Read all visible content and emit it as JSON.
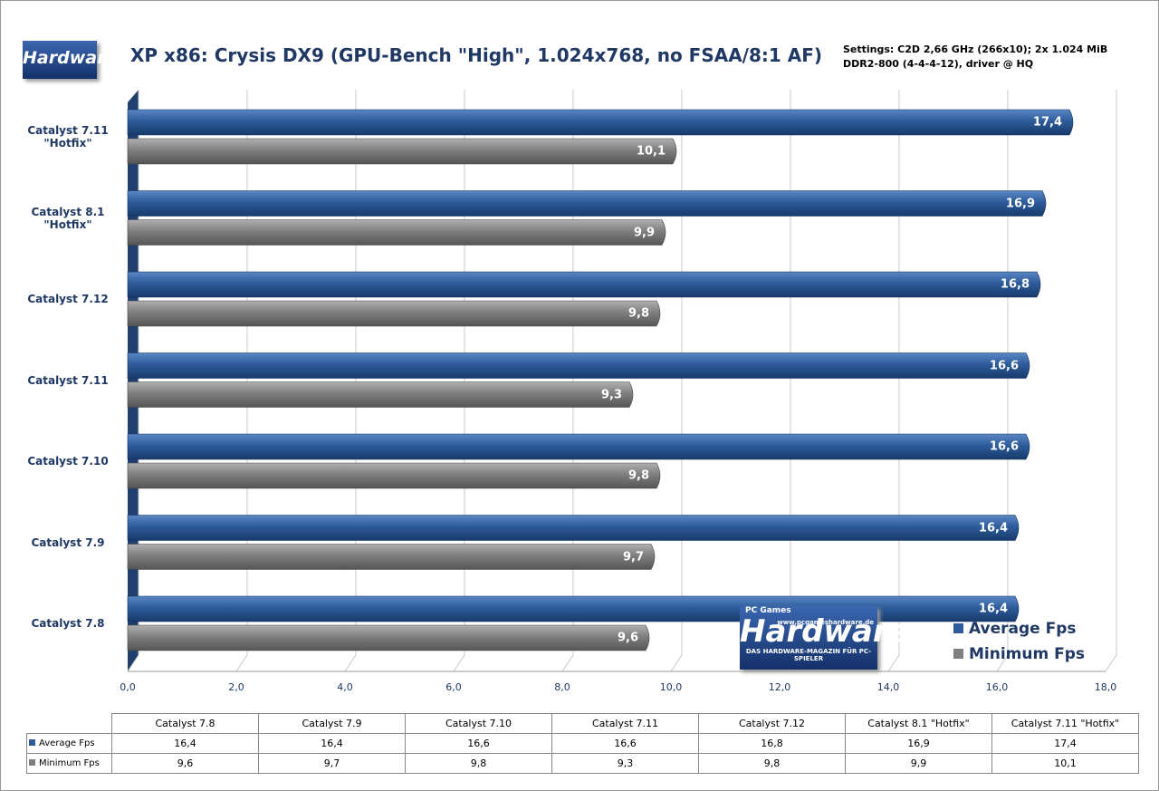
{
  "chart_data": {
    "type": "bar",
    "orientation": "horizontal",
    "title": "XP x86: Crysis DX9 (GPU-Bench \"High\", 1.024x768, no FSAA/8:1 AF)",
    "subtitle": "Settings: C2D 2,66 GHz (266x10); 2x 1.024 MiB DDR2-800 (4-4-4-12), driver @ HQ",
    "logo": {
      "name": "Hardware",
      "brand": "PC Games",
      "url": "www.pcgameshardware.de",
      "tagline": "DAS HARDWARE-MAGAZIN FÜR PC-SPIELER"
    },
    "categories": [
      "Catalyst 7.8",
      "Catalyst 7.9",
      "Catalyst 7.10",
      "Catalyst 7.11",
      "Catalyst 7.12",
      "Catalyst 8.1 \"Hotfix\"",
      "Catalyst 7.11 \"Hotfix\""
    ],
    "series": [
      {
        "name": "Average Fps",
        "color": "#2e5c9a",
        "values": [
          16.4,
          16.4,
          16.6,
          16.6,
          16.8,
          16.9,
          17.4
        ],
        "value_labels": [
          "16,4",
          "16,4",
          "16,6",
          "16,6",
          "16,8",
          "16,9",
          "17,4"
        ]
      },
      {
        "name": "Minimum Fps",
        "color": "#7f7f7f",
        "values": [
          9.6,
          9.7,
          9.8,
          9.3,
          9.8,
          9.9,
          10.1
        ],
        "value_labels": [
          "9,6",
          "9,7",
          "9,8",
          "9,3",
          "9,8",
          "9,9",
          "10,1"
        ]
      }
    ],
    "xlim": [
      0,
      18
    ],
    "xticks": [
      {
        "value": 0,
        "label": "0,0"
      },
      {
        "value": 2,
        "label": "2,0"
      },
      {
        "value": 4,
        "label": "4,0"
      },
      {
        "value": 6,
        "label": "6,0"
      },
      {
        "value": 8,
        "label": "8,0"
      },
      {
        "value": 10,
        "label": "10,0"
      },
      {
        "value": 12,
        "label": "12,0"
      },
      {
        "value": 14,
        "label": "14,0"
      },
      {
        "value": 16,
        "label": "16,0"
      },
      {
        "value": 18,
        "label": "18,0"
      }
    ],
    "grid": true,
    "legend": "lower right"
  }
}
